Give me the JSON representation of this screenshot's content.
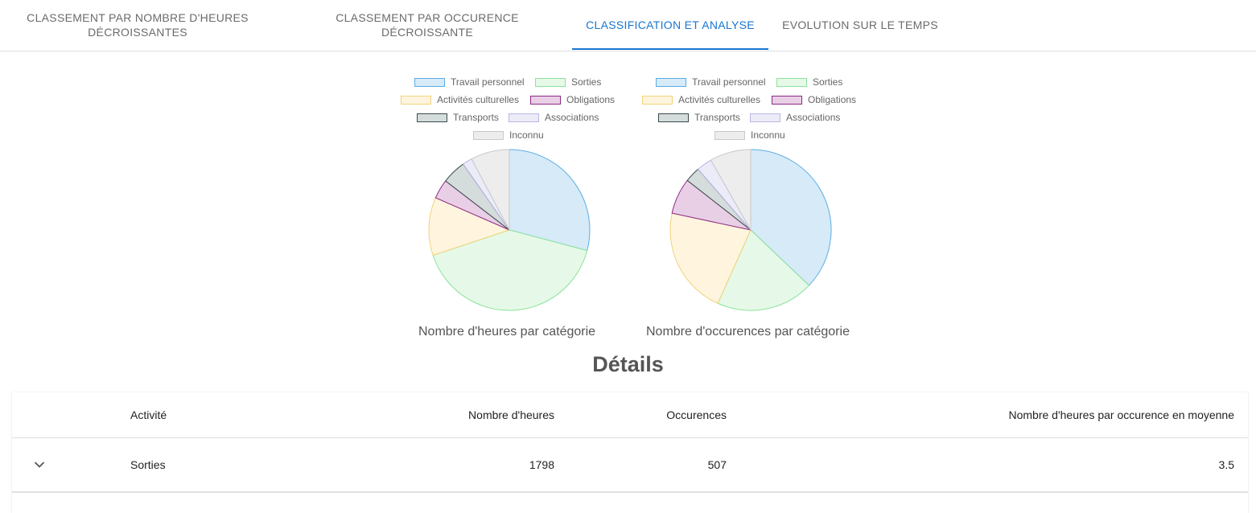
{
  "tabs": [
    {
      "label_line1": "CLASSEMENT PAR NOMBRE D'HEURES",
      "label_line2": "DÉCROISSANTES",
      "active": false
    },
    {
      "label_line1": "CLASSEMENT PAR OCCURENCE",
      "label_line2": "DÉCROISSANTE",
      "active": false
    },
    {
      "label_line1": "CLASSIFICATION ET ANALYSE",
      "label_line2": "",
      "active": true
    },
    {
      "label_line1": "EVOLUTION SUR LE TEMPS",
      "label_line2": "",
      "active": false
    }
  ],
  "legend": [
    {
      "label": "Travail personnel",
      "fill": "#d6eaf8",
      "stroke": "#5dade2"
    },
    {
      "label": "Sorties",
      "fill": "#e6f9e8",
      "stroke": "#8be39a"
    },
    {
      "label": "Activités culturelles",
      "fill": "#fff5de",
      "stroke": "#f2d27a"
    },
    {
      "label": "Obligations",
      "fill": "#e8cfe6",
      "stroke": "#8e2a86"
    },
    {
      "label": "Transports",
      "fill": "#d5dcdc",
      "stroke": "#3d4a4a"
    },
    {
      "label": "Associations",
      "fill": "#ecebf8",
      "stroke": "#b9b6e2"
    },
    {
      "label": "Inconnu",
      "fill": "#ededed",
      "stroke": "#c9c9c9"
    }
  ],
  "chart_data": [
    {
      "type": "pie",
      "title": "Nombre d'heures par catégorie",
      "categories": [
        "Travail personnel",
        "Sorties",
        "Activités culturelles",
        "Obligations",
        "Transports",
        "Associations",
        "Inconnu"
      ],
      "values": [
        30,
        42,
        12,
        4,
        5,
        2,
        8
      ]
    },
    {
      "type": "pie",
      "title": "Nombre d'occurences par catégorie",
      "categories": [
        "Travail personnel",
        "Sorties",
        "Activités culturelles",
        "Obligations",
        "Transports",
        "Associations",
        "Inconnu"
      ],
      "values": [
        36,
        19,
        21,
        7,
        3,
        3,
        8
      ]
    }
  ],
  "details": {
    "title": "Détails",
    "columns": {
      "activity": "Activité",
      "hours": "Nombre d'heures",
      "occurrences": "Occurences",
      "average": "Nombre d'heures par occurence en moyenne"
    },
    "rows": [
      {
        "activity": "Sorties",
        "hours": "1798",
        "occurrences": "507",
        "average": "3.5"
      }
    ]
  }
}
